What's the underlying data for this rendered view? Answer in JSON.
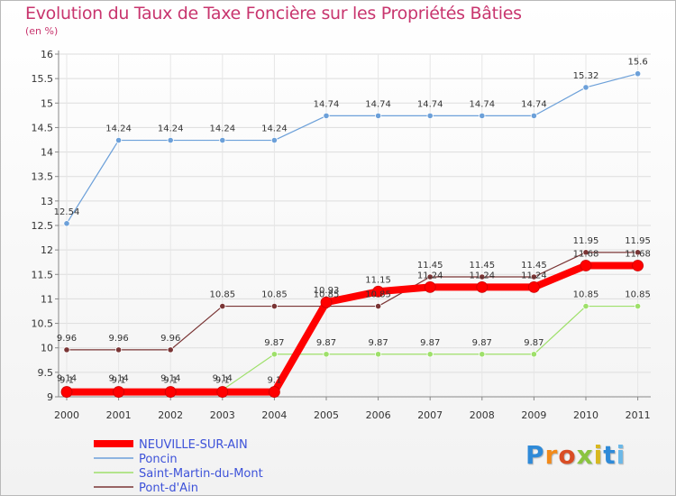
{
  "chart_data": {
    "type": "line",
    "title": "Evolution du Taux de Taxe Foncière sur les Propriétés Bâties",
    "subtitle": "(en %)",
    "x": [
      "2000",
      "2001",
      "2002",
      "2003",
      "2004",
      "2005",
      "2006",
      "2007",
      "2008",
      "2009",
      "2010",
      "2011"
    ],
    "ylim": [
      9,
      16
    ],
    "yticks": [
      "9",
      "9.5",
      "10",
      "10.5",
      "11",
      "11.5",
      "12",
      "12.5",
      "13",
      "13.5",
      "14",
      "14.5",
      "15",
      "15.5",
      "16"
    ],
    "series": [
      {
        "name": "NEUVILLE-SUR-AIN",
        "color": "#ff0000",
        "width": 8,
        "values": [
          9.1,
          9.1,
          9.1,
          9.1,
          9.1,
          10.93,
          11.15,
          11.24,
          11.24,
          11.24,
          11.68,
          11.68
        ],
        "labels": [
          "9.1",
          "9.1",
          "9.1",
          "9.1",
          "9.1",
          "10.93",
          "11.15",
          "11.24",
          "11.24",
          "11.24",
          "11.68",
          "11.68"
        ]
      },
      {
        "name": "Poncin",
        "color": "#6ca0d9",
        "width": 1.2,
        "values": [
          12.54,
          14.24,
          14.24,
          14.24,
          14.24,
          14.74,
          14.74,
          14.74,
          14.74,
          14.74,
          15.32,
          15.6
        ],
        "labels": [
          "12.54",
          "14.24",
          "14.24",
          "14.24",
          "14.24",
          "14.74",
          "14.74",
          "14.74",
          "14.74",
          "14.74",
          "15.32",
          "15.6"
        ]
      },
      {
        "name": "Saint-Martin-du-Mont",
        "color": "#9ee06a",
        "width": 1.2,
        "values": [
          9.14,
          9.14,
          9.14,
          9.14,
          9.87,
          9.87,
          9.87,
          9.87,
          9.87,
          9.87,
          10.85,
          10.85
        ],
        "labels": [
          "9.14",
          "9.14",
          "9.14",
          "9.14",
          "9.87",
          "9.87",
          "9.87",
          "9.87",
          "9.87",
          "9.87",
          "10.85",
          "10.85"
        ]
      },
      {
        "name": "Pont-d'Ain",
        "color": "#7a3535",
        "width": 1.2,
        "values": [
          9.96,
          9.96,
          9.96,
          10.85,
          10.85,
          10.85,
          10.85,
          11.45,
          11.45,
          11.45,
          11.95,
          11.95
        ],
        "labels": [
          "9.96",
          "9.96",
          "9.96",
          "10.85",
          "10.85",
          "10.85",
          "10.85",
          "11.45",
          "11.45",
          "11.45",
          "11.95",
          "11.95"
        ]
      }
    ]
  },
  "logo": {
    "text": "Proxiti"
  }
}
